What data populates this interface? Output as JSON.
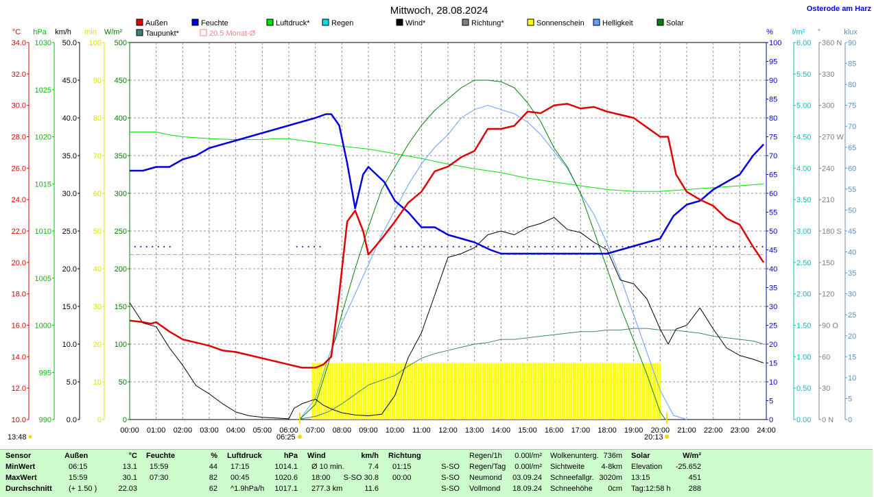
{
  "header": {
    "title": "Mittwoch, 28.08.2024",
    "location": "Osterode am Harz"
  },
  "legend": [
    {
      "label": "Außen",
      "color": "#e00000"
    },
    {
      "label": "Feuchte",
      "color": "#0000e0"
    },
    {
      "label": "Luftdruck*",
      "color": "#00e000"
    },
    {
      "label": "Regen",
      "color": "#00e0e0"
    },
    {
      "label": "Wind*",
      "color": "#000000"
    },
    {
      "label": "Richtung*",
      "color": "#808080"
    },
    {
      "label": "Sonnenschein",
      "color": "#ffff00"
    },
    {
      "label": "Helligkeit",
      "color": "#60a0ff"
    },
    {
      "label": "Solar",
      "color": "#008000"
    },
    {
      "label": "Taupunkt*",
      "color": "#408080"
    },
    {
      "label": "20.5 Monat-Ø",
      "color": "#ff8080"
    }
  ],
  "axes": {
    "temp": {
      "unit": "°C",
      "color": "#e00000",
      "ticks": [
        "34.0",
        "32.0",
        "30.0",
        "28.0",
        "26.0",
        "24.0",
        "22.0",
        "20.0",
        "18.0",
        "16.0",
        "14.0",
        "12.0",
        "10.0"
      ]
    },
    "pressure": {
      "unit": "hPa",
      "color": "#00c000",
      "ticks": [
        "1030",
        "1025",
        "1020",
        "1015",
        "1010",
        "1005",
        "1000",
        "995",
        "990"
      ]
    },
    "wind": {
      "unit": "km/h",
      "color": "#000000",
      "ticks": [
        "50.0",
        "45.0",
        "40.0",
        "35.0",
        "30.0",
        "25.0",
        "20.0",
        "15.0",
        "10.0",
        "5.0",
        "0.0"
      ]
    },
    "sunmin": {
      "unit": "min",
      "color": "#e0e000",
      "ticks": [
        "100",
        "90",
        "80",
        "70",
        "60",
        "50",
        "40",
        "30",
        "20",
        "10",
        "0"
      ]
    },
    "solar": {
      "unit": "W/m²",
      "color": "#008000",
      "ticks": [
        "500",
        "450",
        "400",
        "350",
        "300",
        "250",
        "200",
        "150",
        "100",
        "50",
        "0"
      ]
    },
    "humidity": {
      "unit": "%",
      "color": "#0000c0",
      "ticks": [
        "100",
        "95",
        "90",
        "85",
        "80",
        "75",
        "70",
        "65",
        "60",
        "55",
        "50",
        "45",
        "40",
        "35",
        "30",
        "25",
        "20",
        "15",
        "10",
        "5",
        "0"
      ]
    },
    "rain": {
      "unit": "l/m²",
      "color": "#00c0c0",
      "ticks": [
        "6.00",
        "5.50",
        "5.00",
        "4.50",
        "4.00",
        "3.50",
        "3.00",
        "2.50",
        "2.00",
        "1.50",
        "1.00",
        "0.50",
        "0.00"
      ]
    },
    "direction": {
      "unit": "°",
      "color": "#808080",
      "ticks": [
        "360 N",
        "330",
        "300",
        "270 W",
        "240",
        "210",
        "180 S",
        "150",
        "120",
        "90 O",
        "60",
        "30",
        "0 N"
      ]
    },
    "lux": {
      "unit": "klux",
      "color": "#6090c0",
      "ticks": [
        "90",
        "85",
        "80",
        "75",
        "70",
        "65",
        "60",
        "55",
        "50",
        "45",
        "40",
        "35",
        "30",
        "25",
        "20",
        "15",
        "10",
        "5",
        "0"
      ]
    },
    "time_ticks": [
      "00:00",
      "01:00",
      "02:00",
      "03:00",
      "04:00",
      "05:00",
      "06:00",
      "07:00",
      "08:00",
      "09:00",
      "10:00",
      "11:00",
      "12:00",
      "13:00",
      "14:00",
      "15:00",
      "16:00",
      "17:00",
      "18:00",
      "19:00",
      "20:00",
      "21:00",
      "22:00",
      "23:00",
      "24:00"
    ]
  },
  "markers": {
    "now": "13:48",
    "sunrise": "06:25",
    "sunset": "20:13"
  },
  "chart_data": {
    "type": "line",
    "x_unit": "hour",
    "xlim": [
      0,
      24
    ],
    "monthly_avg_temp": 20.5,
    "series": [
      {
        "name": "Außen",
        "axis": "temp",
        "color": "#e00000",
        "x": [
          0,
          0.5,
          0.8,
          1,
          1.5,
          2,
          2.5,
          3,
          3.5,
          4,
          4.5,
          5,
          5.5,
          6,
          6.5,
          7,
          7.3,
          7.6,
          7.9,
          8.2,
          8.5,
          8.8,
          9,
          9.5,
          10,
          10.5,
          11,
          11.5,
          12,
          12.5,
          13,
          13.5,
          14,
          14.5,
          15,
          15.5,
          16,
          16.5,
          17,
          17.5,
          18,
          18.5,
          19,
          19.5,
          20,
          20.3,
          20.6,
          21,
          21.5,
          22,
          22.5,
          23,
          23.5,
          23.9
        ],
        "y": [
          16.3,
          16.2,
          16.1,
          16.2,
          15.6,
          15.1,
          14.9,
          14.7,
          14.4,
          14.3,
          14.1,
          13.9,
          13.7,
          13.5,
          13.3,
          13.3,
          13.5,
          14.0,
          18.0,
          22.6,
          23.3,
          22.0,
          20.5,
          21.5,
          22.6,
          23.8,
          24.5,
          25.8,
          26.1,
          26.7,
          27.1,
          28.5,
          28.5,
          28.7,
          29.6,
          29.5,
          30.0,
          30.1,
          29.8,
          29.9,
          29.6,
          29.4,
          29.2,
          28.6,
          28.0,
          28.0,
          25.6,
          24.5,
          24.0,
          23.6,
          22.8,
          22.4,
          21.0,
          20.0
        ]
      },
      {
        "name": "Feuchte",
        "axis": "humidity",
        "color": "#0000e0",
        "x": [
          0,
          0.5,
          1,
          1.5,
          2,
          2.5,
          3,
          3.5,
          4,
          4.5,
          5,
          5.5,
          6,
          6.5,
          7,
          7.4,
          7.6,
          7.9,
          8.2,
          8.5,
          8.8,
          9,
          9.3,
          9.6,
          10,
          10.5,
          11,
          11.5,
          12,
          12.5,
          13,
          13.3,
          13.6,
          14,
          14.5,
          15,
          15.5,
          16,
          16.5,
          17,
          17.5,
          18,
          18.5,
          19,
          19.5,
          20,
          20.5,
          21,
          21.5,
          22,
          22.5,
          23,
          23.5,
          23.9
        ],
        "y": [
          66,
          66,
          67,
          67,
          69,
          70,
          72,
          73,
          74,
          75,
          76,
          77,
          78,
          79,
          80,
          81,
          81,
          78,
          68,
          56,
          65,
          67,
          65,
          63,
          58,
          55,
          51,
          51,
          49,
          48,
          47,
          46,
          45,
          44,
          44,
          44,
          44,
          44,
          44,
          44,
          44,
          44,
          45,
          46,
          47,
          48,
          54,
          57,
          58,
          61,
          63,
          65,
          70,
          73
        ]
      },
      {
        "name": "Luftdruck*",
        "axis": "pressure",
        "color": "#00e000",
        "x": [
          0,
          1,
          1.5,
          2,
          3,
          4,
          5,
          5.5,
          6,
          6.5,
          7,
          7.5,
          8,
          9,
          10,
          11,
          12,
          13,
          14,
          15,
          16,
          17,
          18,
          19,
          20,
          21,
          22,
          23,
          23.9
        ],
        "y": [
          1020.5,
          1020.5,
          1020.2,
          1020.0,
          1019.8,
          1019.7,
          1019.7,
          1019.8,
          1019.8,
          1019.6,
          1019.4,
          1019.2,
          1019.0,
          1018.7,
          1018.2,
          1017.7,
          1017.1,
          1016.6,
          1016.2,
          1015.6,
          1015.2,
          1014.8,
          1014.4,
          1014.2,
          1014.2,
          1014.4,
          1014.6,
          1014.8,
          1015.0
        ]
      },
      {
        "name": "Wind*",
        "axis": "wind",
        "color": "#000000",
        "x": [
          0,
          0.5,
          1,
          1.5,
          2,
          2.5,
          3,
          3.5,
          4,
          4.5,
          5,
          5.5,
          6,
          6.2,
          6.5,
          7,
          7.3,
          7.6,
          8,
          8.5,
          9,
          9.5,
          10,
          10.5,
          11,
          11.5,
          12,
          12.5,
          13,
          13.5,
          14,
          14.5,
          15,
          15.5,
          16,
          16.5,
          17,
          17.5,
          18,
          18.5,
          19,
          19.5,
          20,
          20.3,
          20.6,
          21,
          21.5,
          22,
          22.5,
          23,
          23.5,
          23.9
        ],
        "y": [
          15.5,
          12.8,
          12.3,
          9.5,
          7.2,
          4.5,
          3.4,
          2.1,
          1.0,
          0.5,
          0.3,
          0.2,
          0.1,
          1.5,
          2.1,
          2.7,
          1.9,
          1.4,
          0.9,
          0.6,
          0.5,
          0.7,
          3.2,
          8.2,
          11.5,
          16.5,
          21.5,
          22.0,
          22.8,
          24.5,
          25.0,
          24.5,
          25.5,
          26.0,
          26.8,
          25.2,
          24.8,
          23.5,
          22.5,
          18.5,
          18.0,
          16.0,
          12.0,
          10.0,
          12.0,
          12.5,
          14.8,
          12.0,
          9.5,
          8.5,
          8.0,
          7.5
        ]
      },
      {
        "name": "Solar",
        "axis": "solar",
        "color": "#008000",
        "x": [
          6.4,
          7,
          7.5,
          8,
          8.5,
          9,
          9.5,
          10,
          10.5,
          11,
          11.5,
          12,
          12.5,
          13,
          13.5,
          14,
          14.5,
          15,
          15.5,
          16,
          16.5,
          17,
          17.5,
          18,
          18.5,
          19,
          19.5,
          20,
          20.2
        ],
        "y": [
          0,
          20,
          75,
          140,
          200,
          255,
          305,
          335,
          365,
          390,
          410,
          425,
          440,
          450,
          450,
          448,
          440,
          420,
          395,
          360,
          335,
          300,
          250,
          200,
          150,
          105,
          60,
          10,
          0
        ]
      },
      {
        "name": "Helligkeit",
        "axis": "lux",
        "color": "#60a0ff",
        "x": [
          6.4,
          7,
          7.5,
          8,
          8.5,
          9,
          9.5,
          10,
          10.5,
          11,
          11.5,
          12,
          12.5,
          13,
          13.5,
          14,
          14.5,
          15,
          15.5,
          16,
          16.5,
          17,
          17.5,
          18,
          18.5,
          19,
          19.5,
          20,
          20.5,
          21
        ],
        "y": [
          0,
          5,
          15,
          23,
          30,
          37,
          44,
          50,
          56,
          61,
          65,
          68,
          72,
          74,
          75,
          74,
          73,
          71,
          68,
          64,
          60,
          54,
          49,
          42,
          34,
          25,
          16,
          7,
          1,
          0
        ]
      },
      {
        "name": "Taupunkt*",
        "axis": "temp",
        "color": "#408080",
        "x": [
          6.3,
          7,
          7.5,
          8,
          8.5,
          9,
          9.5,
          10,
          10.5,
          11,
          11.5,
          12,
          12.5,
          13,
          13.5,
          14,
          14.5,
          15,
          15.5,
          16,
          16.5,
          17,
          17.5,
          18,
          18.5,
          19,
          19.5,
          20,
          20.5,
          21,
          21.5,
          22,
          22.5,
          23,
          23.5,
          23.9
        ],
        "y": [
          10.0,
          10.2,
          10.5,
          11.0,
          11.6,
          12.2,
          12.5,
          12.8,
          13.4,
          13.9,
          14.2,
          14.4,
          14.6,
          14.8,
          14.9,
          15.1,
          15.1,
          15.2,
          15.3,
          15.4,
          15.5,
          15.6,
          15.6,
          15.7,
          15.7,
          15.8,
          15.8,
          15.7,
          15.7,
          15.6,
          15.5,
          15.3,
          15.2,
          15.1,
          15.0,
          14.8
        ]
      }
    ],
    "sunshine": {
      "name": "Sonnenschein",
      "axis": "sunmin",
      "color": "#ffff00",
      "from": 6.9,
      "to": 20.0,
      "value": 15
    },
    "direction_dots": {
      "name": "Richtung*",
      "axis": "direction",
      "color": "#0000c0",
      "segments": [
        [
          0.2,
          1.6,
          165
        ],
        [
          6.3,
          7.2,
          165
        ],
        [
          10,
          23.9,
          165
        ]
      ]
    }
  },
  "footer": {
    "headers": [
      "Sensor",
      "Außen",
      "°C",
      "Feuchte",
      "%",
      "Luftdruck",
      "hPa",
      "Wind",
      "km/h",
      "Richtung"
    ],
    "rows": [
      {
        "label": "MinWert",
        "temp_time": "06:15",
        "temp": "13.1",
        "hum_time": "15:59",
        "hum": "44",
        "press_time": "17:15",
        "press": "1014.1",
        "wind_label": "Ø 10 min.",
        "wind": "7.4",
        "dir_time": "01:15",
        "dir": "S-SO"
      },
      {
        "label": "MaxWert",
        "temp_time": "15:59",
        "temp": "30.1",
        "hum_time": "07:30",
        "hum": "82",
        "press_time": "00:45",
        "press": "1020.6",
        "wind_label": "18:00",
        "wind": "S-SO 30.8",
        "dir_time": "00:00",
        "dir": "S-SO"
      },
      {
        "label": "Durchschnitt",
        "temp_time": "(+ 1.50 )",
        "temp": "22.03",
        "hum_time": "",
        "hum": "62",
        "press_time": "^1.9hPa/h",
        "press": "1017.1",
        "wind_label": "277.3 km",
        "wind": "11.6",
        "dir_time": "",
        "dir": "S-SO"
      }
    ],
    "rain": [
      [
        "Regen/1h",
        "0.00l/m²"
      ],
      [
        "Regen/Tag",
        "0.00l/m²"
      ],
      [
        "Neumond",
        "03.09.24"
      ],
      [
        "Vollmond",
        "18.09.24"
      ]
    ],
    "cloud": [
      [
        "Wolkenunterg.",
        "736m"
      ],
      [
        "Sichtweite",
        "4-8km"
      ],
      [
        "Schneefallgr.",
        "3020m"
      ],
      [
        "Schneehöhe",
        "0cm"
      ]
    ],
    "solar": {
      "title": "Solar",
      "unit": "W/m²",
      "rows": [
        [
          "Elevation",
          "-25.652"
        ],
        [
          "13:15",
          "451"
        ],
        [
          "Tag:12:58 h",
          "288"
        ]
      ]
    }
  }
}
